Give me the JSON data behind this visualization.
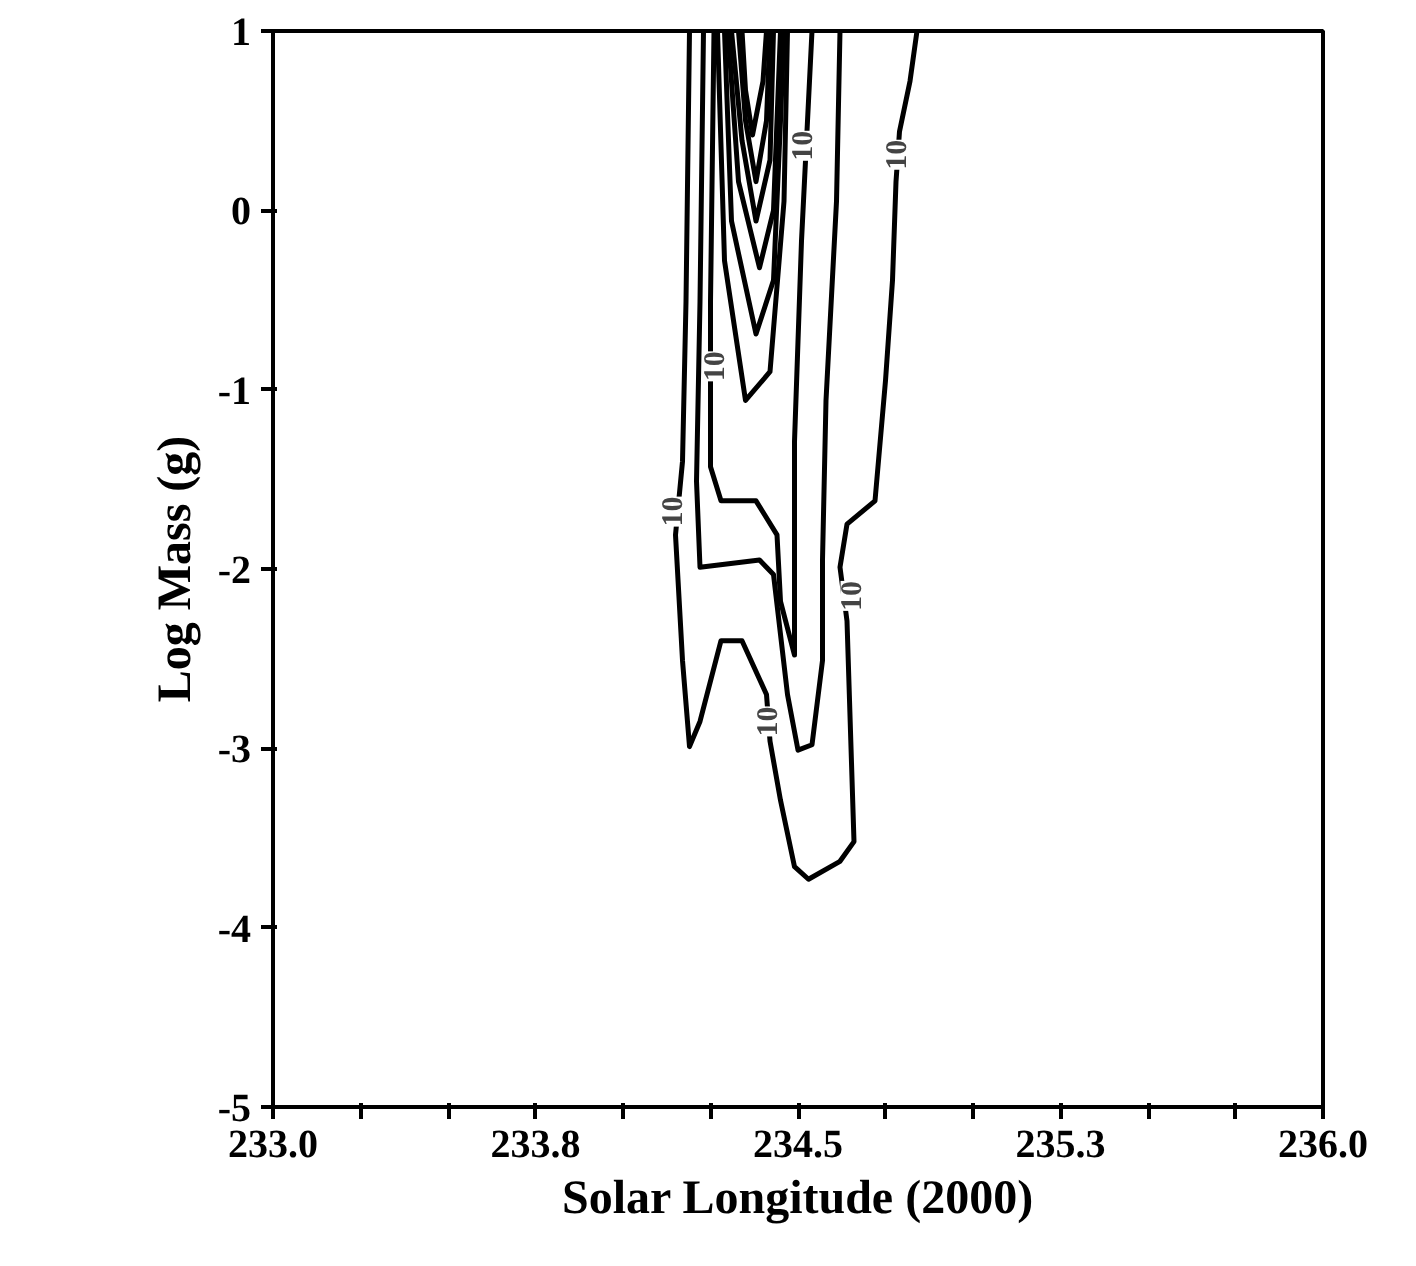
{
  "chart_data": {
    "type": "line",
    "xlabel": "Solar Longitude (2000)",
    "ylabel": "Log Mass (g)",
    "xlim": [
      233.0,
      236.0
    ],
    "ylim": [
      -5,
      1
    ],
    "xticks": [
      {
        "value": 233.0,
        "label": "233.0"
      },
      {
        "value": 233.25,
        "label": null
      },
      {
        "value": 233.5,
        "label": null
      },
      {
        "value": 233.75,
        "label": "233.8"
      },
      {
        "value": 234.0,
        "label": null
      },
      {
        "value": 234.25,
        "label": null
      },
      {
        "value": 234.5,
        "label": "234.5"
      },
      {
        "value": 234.75,
        "label": null
      },
      {
        "value": 235.0,
        "label": null
      },
      {
        "value": 235.25,
        "label": "235.3"
      },
      {
        "value": 235.5,
        "label": null
      },
      {
        "value": 235.75,
        "label": null
      },
      {
        "value": 236.0,
        "label": "236.0"
      }
    ],
    "yticks": [
      -5,
      -4,
      -3,
      -2,
      -1,
      0,
      1
    ],
    "line_style": "solid",
    "series": [
      {
        "color": "#000000",
        "x": [
          234.84,
          234.82,
          234.79,
          234.78,
          234.77,
          234.75,
          234.72,
          234.64,
          234.62,
          234.64,
          234.66,
          234.62,
          234.53,
          234.49,
          234.45,
          234.42,
          234.41,
          234.34,
          234.28,
          234.22,
          234.19,
          234.17,
          234.15,
          234.17,
          234.18,
          234.19
        ],
        "values": [
          1.0,
          0.72,
          0.44,
          0.16,
          -0.39,
          -0.95,
          -1.62,
          -1.75,
          -1.99,
          -2.29,
          -3.52,
          -3.63,
          -3.73,
          -3.66,
          -3.29,
          -2.96,
          -2.7,
          -2.4,
          -2.4,
          -2.85,
          -2.99,
          -2.51,
          -1.81,
          -1.4,
          -0.51,
          1.0
        ]
      },
      {
        "color": "#000000",
        "x": [
          234.62,
          234.61,
          234.58,
          234.57,
          234.57,
          234.54,
          234.5,
          234.47,
          234.43,
          234.39,
          234.22,
          234.21,
          234.22,
          234.23
        ],
        "values": [
          1.0,
          0.05,
          -1.06,
          -1.95,
          -2.51,
          -2.98,
          -3.01,
          -2.7,
          -2.03,
          -1.95,
          -1.99,
          -1.51,
          -0.51,
          1.0
        ]
      },
      {
        "color": "#000000",
        "x": [
          234.54,
          234.51,
          234.49,
          234.49,
          234.45,
          234.44,
          234.38,
          234.28,
          234.25,
          234.25,
          234.26
        ],
        "values": [
          1.0,
          -0.17,
          -1.29,
          -2.48,
          -2.18,
          -1.81,
          -1.62,
          -1.62,
          -1.43,
          -0.51,
          1.0
        ]
      },
      {
        "color": "#000000",
        "x": [
          234.27,
          234.29,
          234.35,
          234.42,
          234.46,
          234.47
        ],
        "values": [
          1.0,
          -0.28,
          -1.06,
          -0.9,
          0.05,
          1.0
        ]
      },
      {
        "color": "#000000",
        "x": [
          234.29,
          234.31,
          234.38,
          234.43,
          234.45,
          234.46
        ],
        "values": [
          1.0,
          -0.06,
          -0.69,
          -0.39,
          0.5,
          1.0
        ]
      },
      {
        "color": "#000000",
        "x": [
          234.3,
          234.33,
          234.39,
          234.43,
          234.45
        ],
        "values": [
          1.0,
          0.16,
          -0.32,
          0.0,
          1.0
        ]
      },
      {
        "color": "#000000",
        "x": [
          234.31,
          234.34,
          234.38,
          234.42,
          234.43
        ],
        "values": [
          1.0,
          0.39,
          -0.06,
          0.28,
          1.0
        ]
      },
      {
        "color": "#000000",
        "x": [
          234.33,
          234.35,
          234.38,
          234.41,
          234.42
        ],
        "values": [
          1.0,
          0.5,
          0.16,
          0.5,
          1.0
        ]
      },
      {
        "color": "#000000",
        "x": [
          234.34,
          234.35,
          234.37,
          234.4,
          234.41
        ],
        "values": [
          1.0,
          0.67,
          0.42,
          0.72,
          1.0
        ]
      }
    ],
    "annotations": [
      {
        "text": "10",
        "x": 234.78,
        "y": 0.31
      },
      {
        "text": "10",
        "x": 234.14,
        "y": -1.68
      },
      {
        "text": "10",
        "x": 234.65,
        "y": -2.15
      },
      {
        "text": "10",
        "x": 234.41,
        "y": -2.85
      },
      {
        "text": "10",
        "x": 234.26,
        "y": -0.87
      },
      {
        "text": "10",
        "x": 234.51,
        "y": 0.36
      }
    ]
  }
}
